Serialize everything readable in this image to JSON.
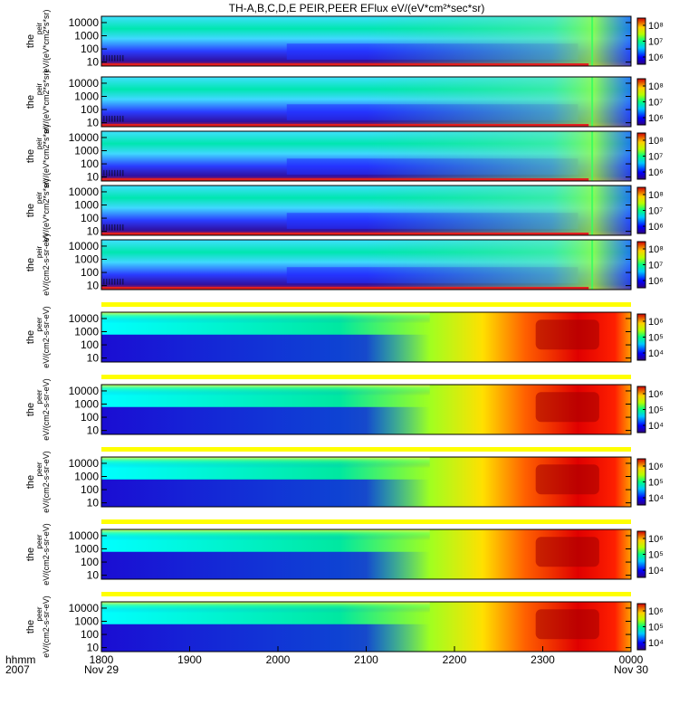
{
  "title": "TH-A,B,C,D,E PEIR,PEER EFlux eV/(eV*cm²*sec*sr)",
  "colors": {
    "background": "#ffffff",
    "separator": "#ffff00",
    "frame": "#000000"
  },
  "chart_data": {
    "type": "heatmap",
    "title": "TH-A,B,C,D,E PEIR,PEER EFlux eV/(eV*cm²*sec*sr)",
    "colormap": "rainbow (purple-blue-cyan-green-yellow-red)",
    "x_axis": {
      "ticks": [
        "1800",
        "1900",
        "2000",
        "2100",
        "2200",
        "2300",
        "0000"
      ],
      "tick_sublabels": [
        "Nov 29",
        "",
        "",
        "",
        "",
        "",
        "Nov 30"
      ],
      "row_labels": [
        "hhmm",
        "2007"
      ]
    },
    "panels": [
      {
        "instrument": "peir",
        "ylabel_main": "the",
        "ylabel_sub": "peir",
        "units": "eV/(eV*cm2*s*sr)",
        "yscale": "log",
        "ylim": [
          5,
          30000
        ],
        "yticks": [
          "10000",
          "1000",
          "100",
          "10"
        ],
        "cticks": [
          "10⁸",
          "10⁷",
          "10⁶"
        ],
        "pattern": "ion"
      },
      {
        "instrument": "peir",
        "ylabel_main": "the",
        "ylabel_sub": "peir",
        "units": "eV/(eV*cm2*s*sr)",
        "yscale": "log",
        "ylim": [
          5,
          30000
        ],
        "yticks": [
          "10000",
          "1000",
          "100",
          "10"
        ],
        "cticks": [
          "10⁸",
          "10⁷",
          "10⁶"
        ],
        "pattern": "ion"
      },
      {
        "instrument": "peir",
        "ylabel_main": "the",
        "ylabel_sub": "peir",
        "units": "eV/(eV*cm2*s*sr)",
        "yscale": "log",
        "ylim": [
          5,
          30000
        ],
        "yticks": [
          "10000",
          "1000",
          "100",
          "10"
        ],
        "cticks": [
          "10⁸",
          "10⁷",
          "10⁶"
        ],
        "pattern": "ion"
      },
      {
        "instrument": "peir",
        "ylabel_main": "the",
        "ylabel_sub": "peir",
        "units": "eV/(eV*cm2*s*sr)",
        "yscale": "log",
        "ylim": [
          5,
          30000
        ],
        "yticks": [
          "10000",
          "1000",
          "100",
          "10"
        ],
        "cticks": [
          "10⁸",
          "10⁷",
          "10⁶"
        ],
        "pattern": "ion"
      },
      {
        "instrument": "peir",
        "ylabel_main": "the",
        "ylabel_sub": "peir",
        "units": "eV/(cm2-s-sr-eV)",
        "yscale": "log",
        "ylim": [
          5,
          30000
        ],
        "yticks": [
          "10000",
          "1000",
          "100",
          "10"
        ],
        "cticks": [
          "10⁸",
          "10⁷",
          "10⁶"
        ],
        "pattern": "ion"
      },
      {
        "instrument": "peer",
        "ylabel_main": "the",
        "ylabel_sub": "peer",
        "units": "eV/(cm2-s-sr-eV)",
        "yscale": "log",
        "ylim": [
          5,
          30000
        ],
        "yticks": [
          "10000",
          "1000",
          "100",
          "10"
        ],
        "cticks": [
          "10⁶",
          "10⁵",
          "10⁴"
        ],
        "pattern": "electron"
      },
      {
        "instrument": "peer",
        "ylabel_main": "the",
        "ylabel_sub": "peer",
        "units": "eV/(cm2-s-sr-eV)",
        "yscale": "log",
        "ylim": [
          5,
          30000
        ],
        "yticks": [
          "10000",
          "1000",
          "100",
          "10"
        ],
        "cticks": [
          "10⁶",
          "10⁵",
          "10⁴"
        ],
        "pattern": "electron"
      },
      {
        "instrument": "peer",
        "ylabel_main": "the",
        "ylabel_sub": "peer",
        "units": "eV/(cm2-s-sr-eV)",
        "yscale": "log",
        "ylim": [
          5,
          30000
        ],
        "yticks": [
          "10000",
          "1000",
          "100",
          "10"
        ],
        "cticks": [
          "10⁶",
          "10⁵",
          "10⁴"
        ],
        "pattern": "electron"
      },
      {
        "instrument": "peer",
        "ylabel_main": "the",
        "ylabel_sub": "peer",
        "units": "eV/(cm2-s-sr-eV)",
        "yscale": "log",
        "ylim": [
          5,
          30000
        ],
        "yticks": [
          "10000",
          "1000",
          "100",
          "10"
        ],
        "cticks": [
          "10⁶",
          "10⁵",
          "10⁴"
        ],
        "pattern": "electron"
      },
      {
        "instrument": "peer",
        "ylabel_main": "the",
        "ylabel_sub": "peer",
        "units": "eV/(cm2-s-sr-eV)",
        "yscale": "log",
        "ylim": [
          5,
          30000
        ],
        "yticks": [
          "10000",
          "1000",
          "100",
          "10"
        ],
        "cticks": [
          "10⁶",
          "10⁵",
          "10⁴"
        ],
        "pattern": "electron"
      }
    ]
  }
}
